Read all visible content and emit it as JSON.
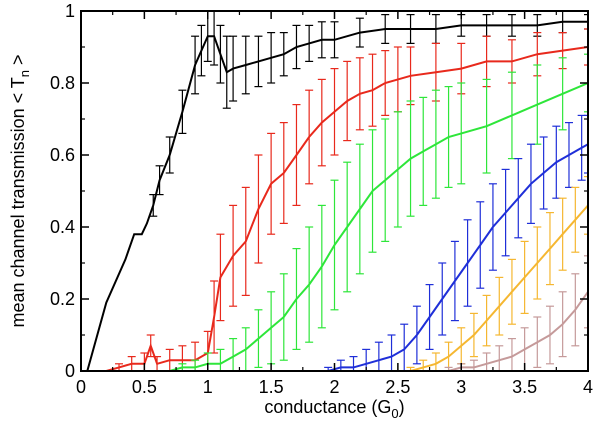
{
  "chart_data": {
    "type": "line",
    "xlabel": "conductance (G",
    "xlabel_sub": "0",
    "xlabel_close": ")",
    "ylabel": "mean channel transmission < T",
    "ylabel_sub": "n",
    "ylabel_close": " >",
    "xlim": [
      0,
      4
    ],
    "ylim": [
      0,
      1
    ],
    "x_ticks": [
      "0",
      "0.5",
      "1",
      "1.5",
      "2",
      "2.5",
      "3",
      "3.5",
      "4"
    ],
    "y_ticks": [
      "0",
      "0.2",
      "0.4",
      "0.6",
      "0.8",
      "1"
    ],
    "grid": false,
    "series": [
      {
        "color": "#000000",
        "x": [
          0.05,
          0.2,
          0.35,
          0.42,
          0.48,
          0.52,
          0.57,
          0.62,
          0.7,
          0.8,
          0.9,
          0.95,
          1.0,
          1.05,
          1.1,
          1.15,
          1.2,
          1.3,
          1.4,
          1.5,
          1.6,
          1.7,
          1.8,
          1.9,
          2.0,
          2.2,
          2.4,
          2.6,
          2.8,
          3.0,
          3.2,
          3.4,
          3.6,
          3.8,
          4.0
        ],
        "y": [
          0.0,
          0.19,
          0.31,
          0.38,
          0.38,
          0.41,
          0.46,
          0.53,
          0.6,
          0.72,
          0.85,
          0.89,
          0.93,
          0.93,
          0.88,
          0.83,
          0.84,
          0.85,
          0.86,
          0.87,
          0.88,
          0.9,
          0.91,
          0.92,
          0.92,
          0.94,
          0.95,
          0.95,
          0.95,
          0.96,
          0.96,
          0.96,
          0.96,
          0.97,
          0.97
        ],
        "err": [
          0.0,
          0.0,
          0.0,
          0.0,
          0.0,
          0.0,
          0.03,
          0.04,
          0.05,
          0.06,
          0.08,
          0.07,
          0.07,
          0.08,
          0.08,
          0.1,
          0.09,
          0.08,
          0.07,
          0.07,
          0.06,
          0.06,
          0.05,
          0.05,
          0.05,
          0.04,
          0.04,
          0.04,
          0.04,
          0.03,
          0.03,
          0.03,
          0.03,
          0.03,
          0.02
        ]
      },
      {
        "color": "#e8291c",
        "x": [
          0.2,
          0.3,
          0.4,
          0.5,
          0.55,
          0.6,
          0.7,
          0.8,
          0.9,
          1.0,
          1.05,
          1.1,
          1.2,
          1.3,
          1.4,
          1.5,
          1.6,
          1.7,
          1.8,
          1.9,
          2.0,
          2.1,
          2.2,
          2.3,
          2.4,
          2.5,
          2.6,
          2.8,
          3.0,
          3.2,
          3.4,
          3.6,
          3.8,
          4.0
        ],
        "y": [
          0.0,
          0.01,
          0.02,
          0.02,
          0.07,
          0.02,
          0.03,
          0.03,
          0.03,
          0.05,
          0.15,
          0.26,
          0.32,
          0.36,
          0.45,
          0.52,
          0.55,
          0.6,
          0.65,
          0.69,
          0.72,
          0.75,
          0.77,
          0.78,
          0.8,
          0.81,
          0.82,
          0.83,
          0.84,
          0.86,
          0.86,
          0.88,
          0.89,
          0.9
        ],
        "err": [
          0.0,
          0.01,
          0.02,
          0.03,
          0.03,
          0.02,
          0.03,
          0.04,
          0.05,
          0.06,
          0.1,
          0.12,
          0.14,
          0.15,
          0.15,
          0.14,
          0.14,
          0.14,
          0.13,
          0.12,
          0.12,
          0.11,
          0.1,
          0.1,
          0.09,
          0.09,
          0.08,
          0.08,
          0.07,
          0.07,
          0.06,
          0.06,
          0.05,
          0.05
        ]
      },
      {
        "color": "#2ee63a",
        "x": [
          0.7,
          0.8,
          0.9,
          1.0,
          1.1,
          1.2,
          1.3,
          1.4,
          1.5,
          1.6,
          1.7,
          1.8,
          1.9,
          2.0,
          2.1,
          2.2,
          2.3,
          2.4,
          2.5,
          2.6,
          2.7,
          2.8,
          2.9,
          3.0,
          3.2,
          3.4,
          3.6,
          3.8,
          4.0
        ],
        "y": [
          0.0,
          0.01,
          0.01,
          0.02,
          0.02,
          0.04,
          0.06,
          0.09,
          0.12,
          0.15,
          0.2,
          0.24,
          0.29,
          0.35,
          0.4,
          0.45,
          0.5,
          0.53,
          0.56,
          0.59,
          0.61,
          0.63,
          0.65,
          0.66,
          0.68,
          0.71,
          0.74,
          0.77,
          0.8
        ],
        "err": [
          0.0,
          0.01,
          0.02,
          0.03,
          0.04,
          0.05,
          0.06,
          0.08,
          0.1,
          0.12,
          0.14,
          0.16,
          0.17,
          0.18,
          0.18,
          0.18,
          0.17,
          0.17,
          0.16,
          0.16,
          0.15,
          0.15,
          0.14,
          0.14,
          0.13,
          0.12,
          0.11,
          0.1,
          0.08
        ]
      },
      {
        "color": "#1f2fd8",
        "x": [
          1.95,
          2.05,
          2.15,
          2.25,
          2.35,
          2.45,
          2.55,
          2.65,
          2.75,
          2.85,
          2.95,
          3.05,
          3.15,
          3.25,
          3.35,
          3.45,
          3.55,
          3.65,
          3.75,
          3.85,
          3.95,
          4.0
        ],
        "y": [
          0.0,
          0.01,
          0.01,
          0.02,
          0.03,
          0.04,
          0.06,
          0.1,
          0.15,
          0.2,
          0.25,
          0.3,
          0.35,
          0.4,
          0.44,
          0.48,
          0.52,
          0.55,
          0.58,
          0.6,
          0.62,
          0.63
        ],
        "err": [
          0.01,
          0.02,
          0.03,
          0.04,
          0.05,
          0.06,
          0.07,
          0.08,
          0.09,
          0.1,
          0.11,
          0.12,
          0.12,
          0.12,
          0.12,
          0.11,
          0.11,
          0.1,
          0.1,
          0.09,
          0.09,
          0.08
        ]
      },
      {
        "color": "#f5b731",
        "x": [
          2.6,
          2.7,
          2.8,
          2.9,
          3.0,
          3.1,
          3.2,
          3.3,
          3.4,
          3.5,
          3.6,
          3.7,
          3.8,
          3.9,
          4.0
        ],
        "y": [
          0.0,
          0.01,
          0.02,
          0.04,
          0.07,
          0.1,
          0.14,
          0.18,
          0.22,
          0.26,
          0.3,
          0.34,
          0.38,
          0.42,
          0.46
        ],
        "err": [
          0.01,
          0.02,
          0.03,
          0.04,
          0.05,
          0.06,
          0.07,
          0.08,
          0.09,
          0.1,
          0.1,
          0.1,
          0.1,
          0.09,
          0.08
        ]
      },
      {
        "color": "#c59a9a",
        "x": [
          2.9,
          3.0,
          3.1,
          3.2,
          3.3,
          3.4,
          3.5,
          3.6,
          3.7,
          3.8,
          3.9,
          4.0
        ],
        "y": [
          0.0,
          0.01,
          0.01,
          0.02,
          0.03,
          0.04,
          0.06,
          0.08,
          0.1,
          0.13,
          0.17,
          0.22
        ],
        "err": [
          0.01,
          0.01,
          0.02,
          0.03,
          0.04,
          0.05,
          0.06,
          0.07,
          0.08,
          0.09,
          0.1,
          0.1
        ]
      }
    ]
  }
}
